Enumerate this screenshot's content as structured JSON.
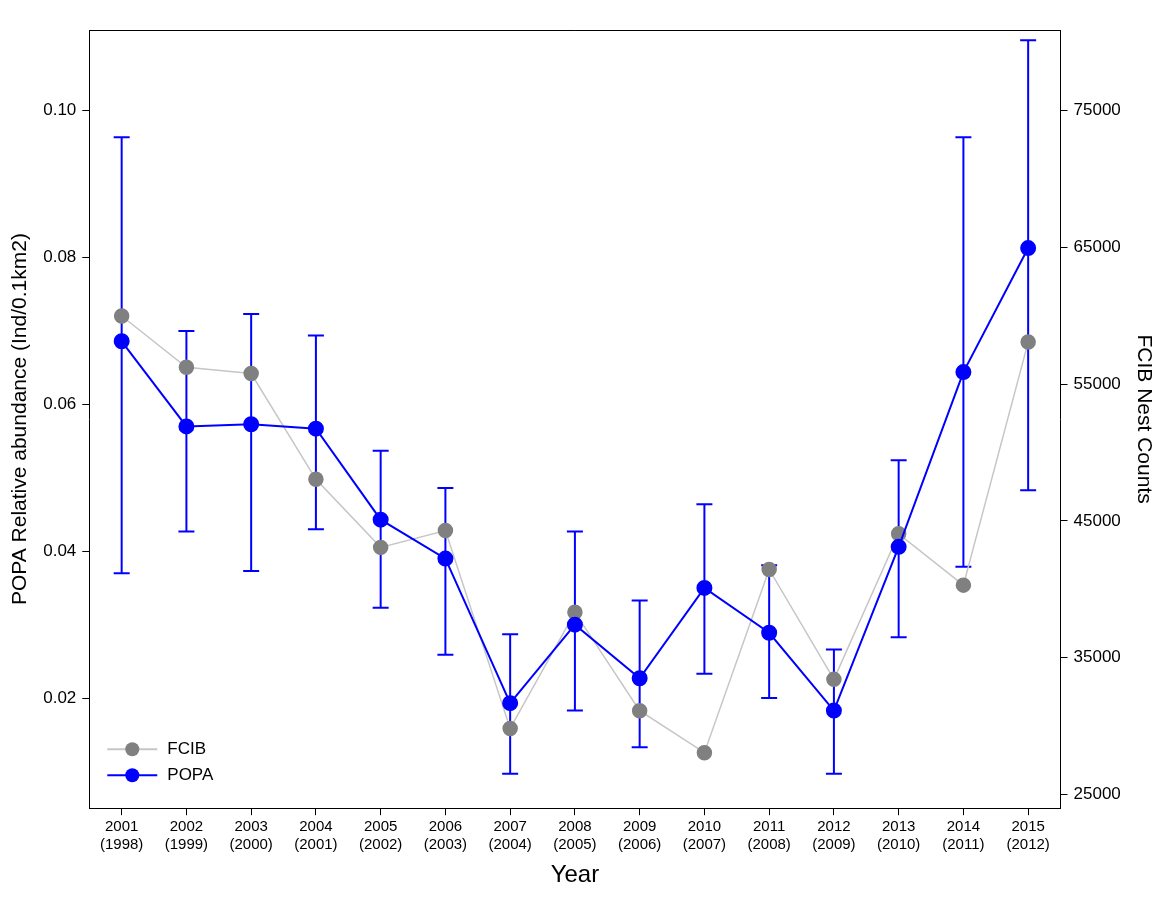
{
  "chart_data": {
    "type": "line",
    "x_label": "Year",
    "y_label": "POPA Relative abundance (Ind/0.1km2)",
    "y2_label": "FCIB Nest Counts",
    "categories": [
      [
        "2001",
        "(1998)"
      ],
      [
        "2002",
        "(1999)"
      ],
      [
        "2003",
        "(2000)"
      ],
      [
        "2004",
        "(2001)"
      ],
      [
        "2005",
        "(2002)"
      ],
      [
        "2006",
        "(2003)"
      ],
      [
        "2007",
        "(2004)"
      ],
      [
        "2008",
        "(2005)"
      ],
      [
        "2009",
        "(2006)"
      ],
      [
        "2010",
        "(2007)"
      ],
      [
        "2011",
        "(2008)"
      ],
      [
        "2012",
        "(2009)"
      ],
      [
        "2013",
        "(2010)"
      ],
      [
        "2014",
        "(2011)"
      ],
      [
        "2015",
        "(2012)"
      ]
    ],
    "ylim": [
      0.005,
      0.111
    ],
    "yticks": [
      0.02,
      0.04,
      0.06,
      0.08,
      {
        "value": 0.1,
        "label": "0.10"
      }
    ],
    "y2lim": [
      24000,
      80900
    ],
    "y2ticks": [
      25000,
      35000,
      45000,
      55000,
      65000,
      75000
    ],
    "grid": false,
    "legend": "lower left",
    "series": [
      {
        "name": "FCIB",
        "color": "#808080",
        "axis": "y2",
        "marker": "circle",
        "line_style": "solid",
        "values": [
          59990,
          56240,
          55780,
          48050,
          43070,
          44300,
          29830,
          38320,
          31130,
          28060,
          41460,
          33420,
          44060,
          40310,
          58080
        ]
      },
      {
        "name": "POPA",
        "color": "#0000ff",
        "axis": "y",
        "marker": "circle",
        "line_style": "solid",
        "values": [
          0.0686,
          0.057,
          0.0573,
          0.0567,
          0.0443,
          0.039,
          0.0193,
          0.03,
          0.0227,
          0.035,
          0.0289,
          0.0183,
          0.0406,
          0.0644,
          0.0813
        ],
        "lower": [
          0.037,
          0.0427,
          0.0373,
          0.043,
          0.0323,
          0.0259,
          0.0097,
          0.0183,
          0.0133,
          0.0233,
          0.02,
          0.0097,
          0.0283,
          0.0379,
          0.0483
        ],
        "upper": [
          0.0964,
          0.07,
          0.0723,
          0.0694,
          0.0537,
          0.0486,
          0.0287,
          0.0427,
          0.0333,
          0.0464,
          0.0381,
          0.0266,
          0.0524,
          0.0964,
          0.1096
        ]
      }
    ]
  }
}
